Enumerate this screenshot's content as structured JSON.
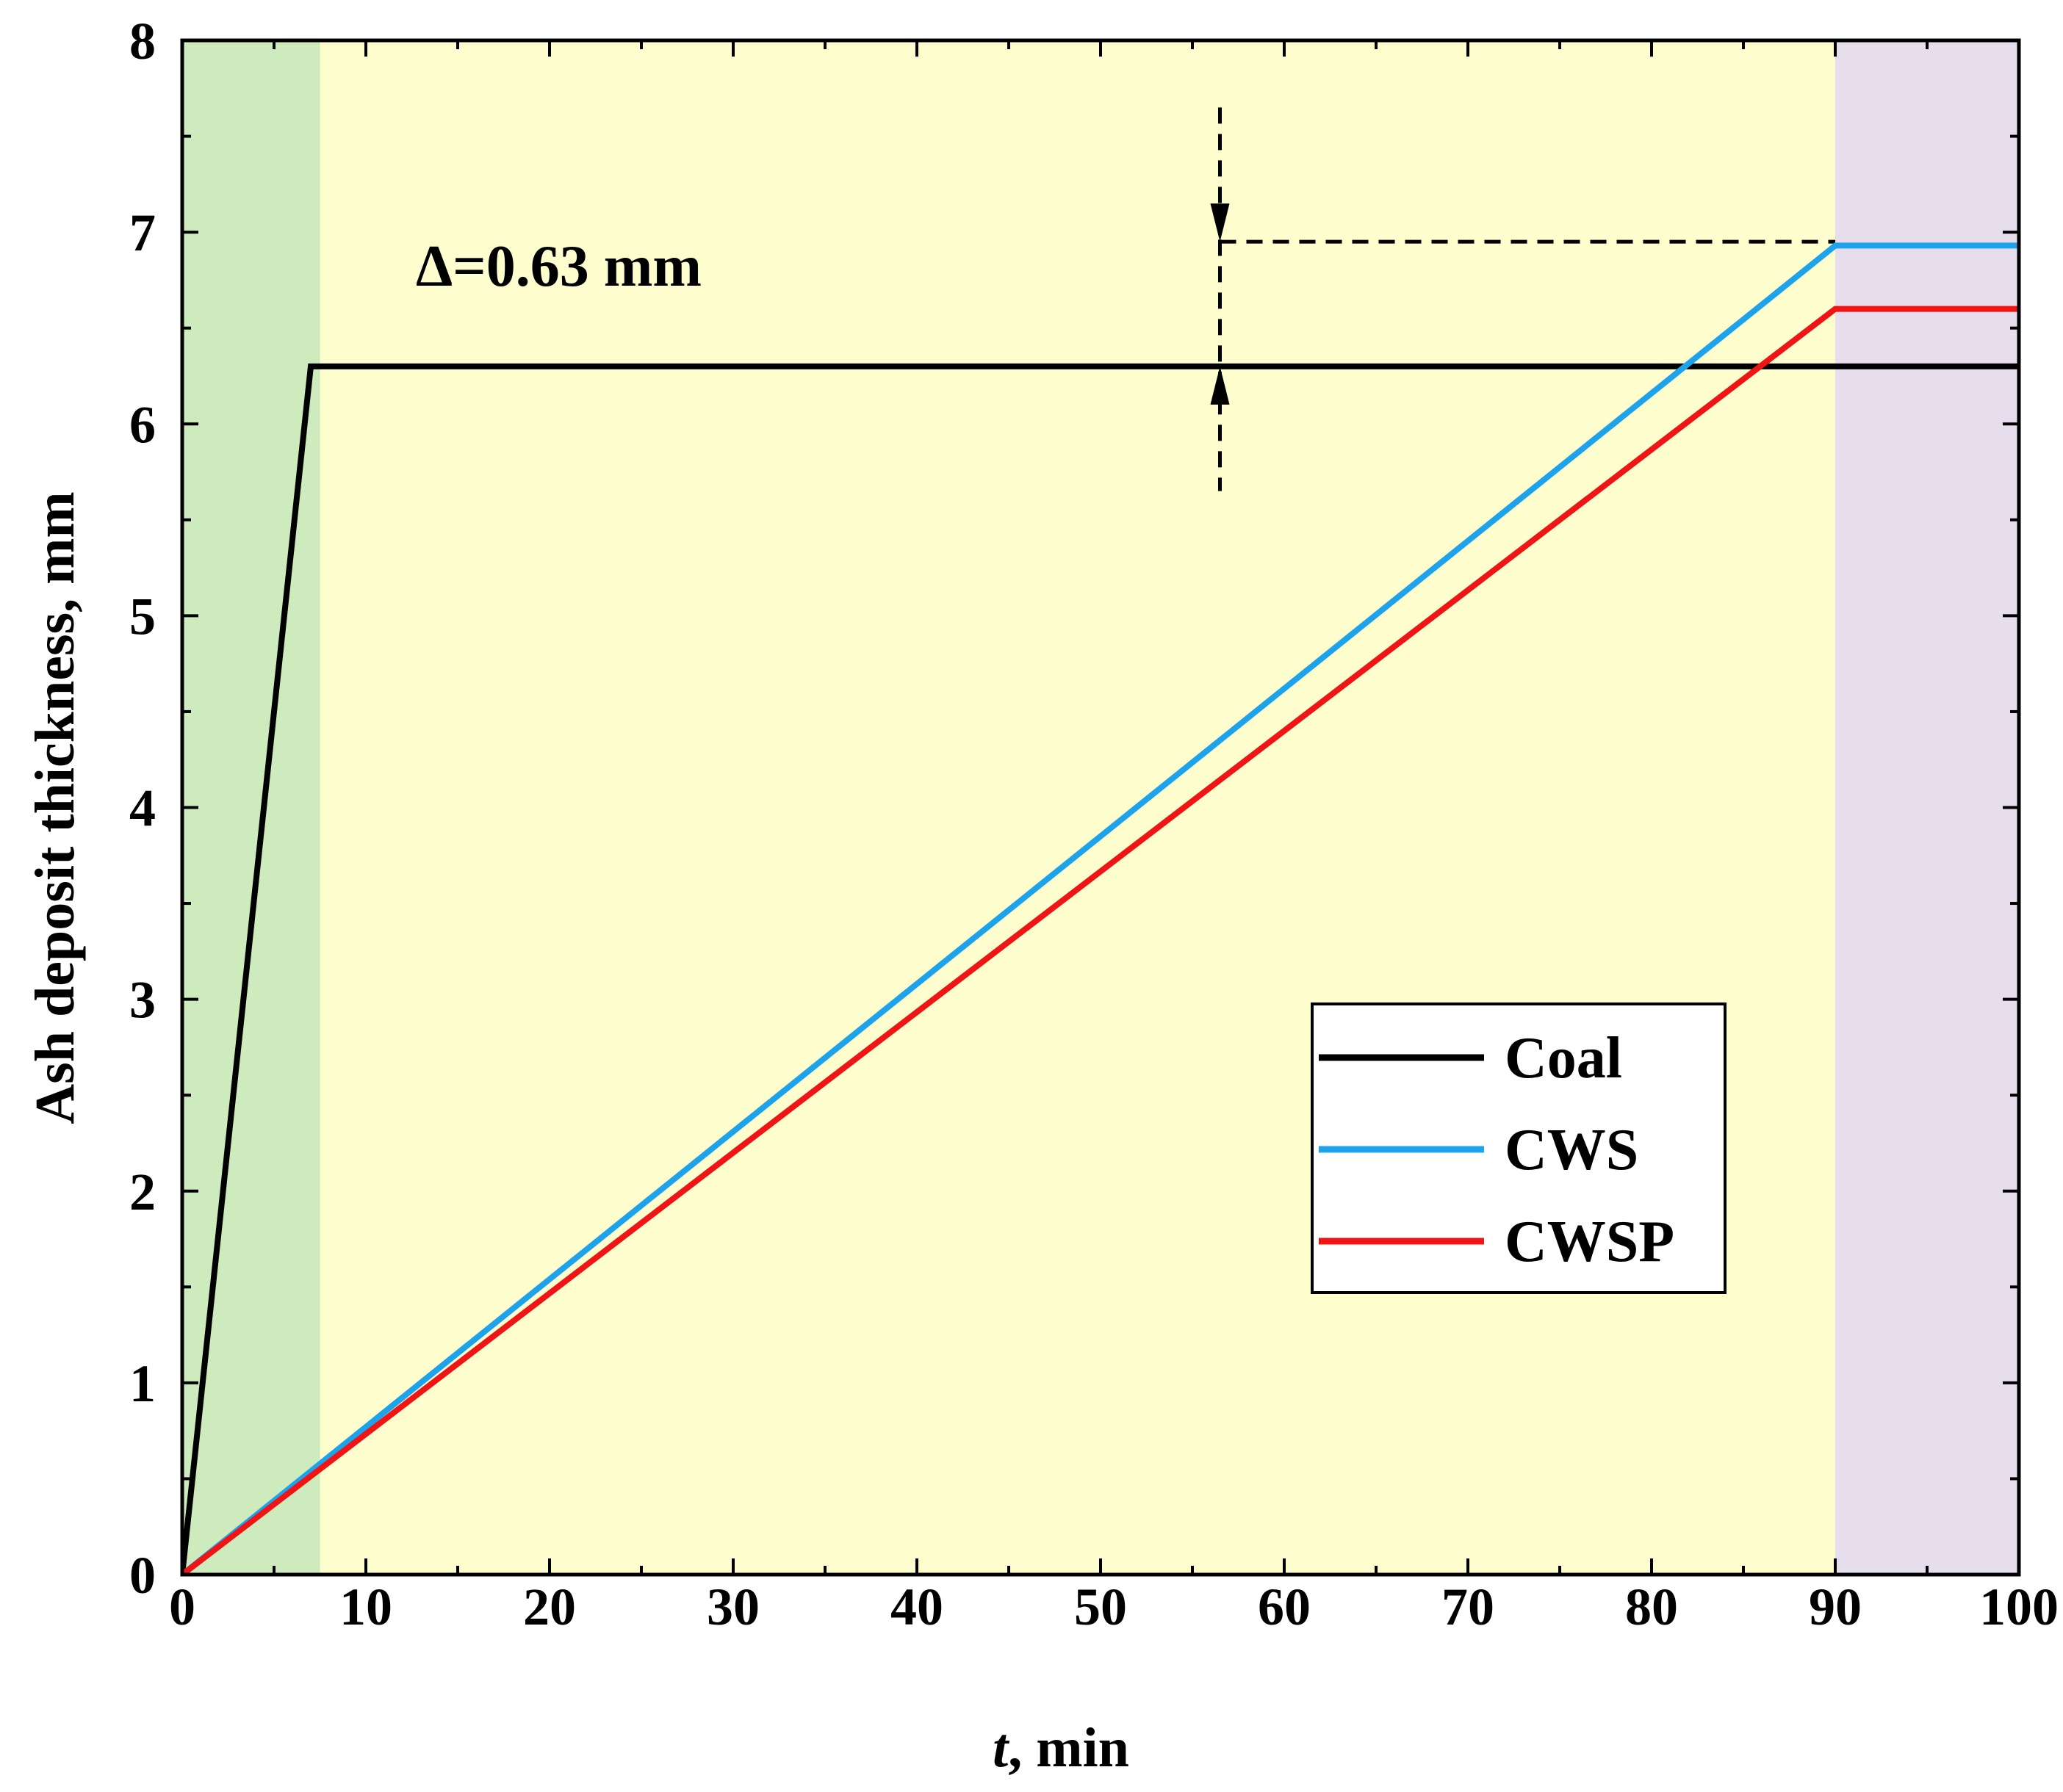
{
  "chart_data": {
    "type": "line",
    "title": "",
    "xlabel_italic": "t",
    "xlabel_rest": ", min",
    "ylabel": "Ash deposit thickness, mm",
    "xlim": [
      0,
      100
    ],
    "ylim": [
      0,
      8
    ],
    "x_ticks": [
      0,
      10,
      20,
      30,
      40,
      50,
      60,
      70,
      80,
      90,
      100
    ],
    "y_ticks": [
      0,
      1,
      2,
      3,
      4,
      5,
      6,
      7,
      8
    ],
    "regions": [
      {
        "x0": 0,
        "x1": 7.5,
        "color": "#cdebbd"
      },
      {
        "x0": 7.5,
        "x1": 90,
        "color": "#fdfdcd"
      },
      {
        "x0": 90,
        "x1": 100,
        "color": "#e6deec"
      }
    ],
    "series": [
      {
        "name": "Coal",
        "color": "#000000",
        "x": [
          0,
          7,
          100
        ],
        "y": [
          0,
          6.3,
          6.3
        ]
      },
      {
        "name": "CWS",
        "color": "#1ca3ec",
        "x": [
          0,
          90,
          100
        ],
        "y": [
          0,
          6.93,
          6.93
        ]
      },
      {
        "name": "CWSP",
        "color": "#f01414",
        "x": [
          0,
          90,
          100
        ],
        "y": [
          0,
          6.6,
          6.6
        ]
      }
    ],
    "annotation": {
      "text": "Δ=0.63 mm",
      "x_text": 20.5,
      "y_text": 6.72,
      "arrow_x": 56.5,
      "y_low": 6.3,
      "y_high": 6.95,
      "dash_top": 7.65,
      "dash_bottom": 5.65,
      "hline_x_end": 90
    },
    "legend": {
      "position": "bottom-right"
    }
  }
}
